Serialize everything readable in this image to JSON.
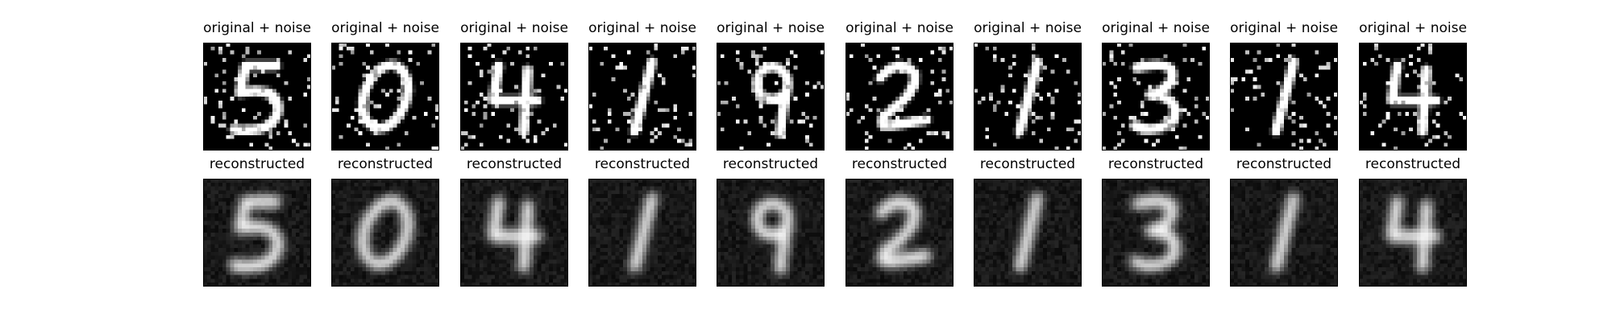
{
  "figure": {
    "row_titles": {
      "noisy": "original + noise",
      "reconstructed": "reconstructed"
    },
    "columns": [
      {
        "digit": "5"
      },
      {
        "digit": "0"
      },
      {
        "digit": "4"
      },
      {
        "digit": "1"
      },
      {
        "digit": "9"
      },
      {
        "digit": "2"
      },
      {
        "digit": "1"
      },
      {
        "digit": "3"
      },
      {
        "digit": "1"
      },
      {
        "digit": "4"
      }
    ],
    "colors": {
      "background": "#ffffff",
      "image_background": "#000000",
      "stroke": "#ffffff",
      "title": "#000000"
    }
  }
}
